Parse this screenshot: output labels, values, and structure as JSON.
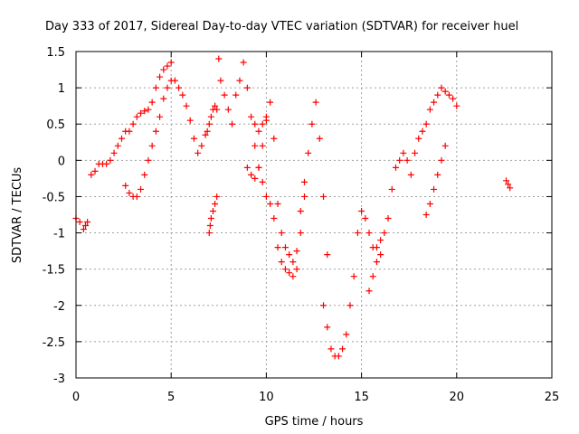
{
  "chart_data": {
    "type": "scatter",
    "title": "Day 333 of 2017, Sidereal Day-to-day VTEC variation (SDTVAR) for receiver huel",
    "xlabel": "GPS time / hours",
    "ylabel": "SDTVAR / TECUs",
    "xlim": [
      0,
      25
    ],
    "ylim": [
      -3,
      1.5
    ],
    "xticks": [
      0,
      5,
      10,
      15,
      20,
      25
    ],
    "yticks": [
      -3,
      -2.5,
      -2,
      -1.5,
      -1,
      -0.5,
      0,
      0.5,
      1,
      1.5
    ],
    "xtick_labels": [
      "0",
      "5",
      "10",
      "15",
      "20",
      "25"
    ],
    "ytick_labels": [
      "-3",
      "-2.5",
      "-2",
      "-1.5",
      "-1",
      "-0.5",
      "0",
      "0.5",
      "1",
      "1.5"
    ],
    "grid": true,
    "marker": "plus",
    "color": "#ff0000",
    "series": [
      {
        "name": "s1",
        "x": [
          0.0,
          0.2,
          0.4,
          0.5,
          0.6
        ],
        "y": [
          -0.8,
          -0.85,
          -0.95,
          -0.9,
          -0.85
        ]
      },
      {
        "name": "s2",
        "x": [
          0.8,
          1.0,
          1.2,
          1.4,
          1.6,
          1.8,
          2.0,
          2.2,
          2.4,
          2.6,
          2.8,
          3.0,
          3.2,
          3.4,
          3.6,
          3.8,
          4.0,
          4.2,
          4.4,
          4.6,
          4.8,
          5.0
        ],
        "y": [
          -0.2,
          -0.15,
          -0.05,
          -0.05,
          -0.05,
          0.0,
          0.1,
          0.2,
          0.3,
          0.4,
          0.4,
          0.5,
          0.6,
          0.65,
          0.68,
          0.7,
          0.8,
          1.0,
          1.15,
          1.25,
          1.3,
          1.35
        ]
      },
      {
        "name": "s3",
        "x": [
          2.6,
          2.8,
          3.0,
          3.2,
          3.4,
          3.6,
          3.8,
          4.0,
          4.2,
          4.4,
          4.6,
          4.8,
          5.0,
          5.2,
          5.4,
          5.6,
          5.8,
          6.0,
          6.2,
          6.4,
          6.6,
          6.8
        ],
        "y": [
          -0.35,
          -0.45,
          -0.5,
          -0.5,
          -0.4,
          -0.2,
          0.0,
          0.2,
          0.4,
          0.6,
          0.85,
          1.0,
          1.1,
          1.1,
          1.0,
          0.9,
          0.75,
          0.55,
          0.3,
          0.1,
          0.2,
          0.35
        ]
      },
      {
        "name": "s4",
        "x": [
          7.0,
          7.05,
          7.1,
          7.2,
          7.3,
          7.4
        ],
        "y": [
          -1.0,
          -0.9,
          -0.8,
          -0.7,
          -0.6,
          -0.5
        ]
      },
      {
        "name": "s5",
        "x": [
          6.9,
          7.0,
          7.1,
          7.2,
          7.3,
          7.4
        ],
        "y": [
          0.4,
          0.5,
          0.6,
          0.7,
          0.75,
          0.7
        ]
      },
      {
        "name": "s6",
        "x": [
          7.5,
          7.6,
          7.8,
          8.0,
          8.2,
          8.4,
          8.6,
          8.8,
          9.0,
          9.2,
          9.4,
          9.6,
          9.8,
          10.0
        ],
        "y": [
          1.4,
          1.1,
          0.9,
          0.7,
          0.5,
          0.9,
          1.1,
          1.35,
          1.0,
          0.6,
          0.5,
          0.4,
          0.5,
          0.55
        ]
      },
      {
        "name": "s7",
        "x": [
          9.0,
          9.2,
          9.4,
          9.6,
          9.8,
          10.0,
          10.2,
          10.4,
          10.6,
          10.8,
          11.0,
          11.2,
          11.4,
          11.6,
          11.8,
          12.0
        ],
        "y": [
          -0.1,
          -0.2,
          -0.25,
          -0.1,
          0.2,
          0.6,
          0.8,
          0.3,
          -0.6,
          -1.0,
          -1.2,
          -1.3,
          -1.4,
          -1.25,
          -0.7,
          -0.3
        ]
      },
      {
        "name": "s8",
        "x": [
          9.4,
          9.6,
          9.8,
          10.0,
          10.2,
          10.4,
          10.6,
          10.8,
          11.0,
          11.2,
          11.4,
          11.6,
          11.8,
          12.0,
          12.2,
          12.4,
          12.6,
          12.8,
          13.0,
          13.2
        ],
        "y": [
          0.2,
          -0.1,
          -0.3,
          -0.5,
          -0.6,
          -0.8,
          -1.2,
          -1.4,
          -1.5,
          -1.55,
          -1.6,
          -1.5,
          -1.0,
          -0.5,
          0.1,
          0.5,
          0.8,
          0.3,
          -0.5,
          -1.3
        ]
      },
      {
        "name": "s9",
        "x": [
          13.0,
          13.2,
          13.4,
          13.6,
          13.8,
          14.0,
          14.2,
          14.4,
          14.6,
          14.8,
          15.0,
          15.2,
          15.4,
          15.6,
          15.8,
          16.0
        ],
        "y": [
          -2.0,
          -2.3,
          -2.6,
          -2.7,
          -2.7,
          -2.6,
          -2.4,
          -2.0,
          -1.6,
          -1.0,
          -0.7,
          -0.8,
          -1.0,
          -1.2,
          -1.4,
          -1.3
        ]
      },
      {
        "name": "s10",
        "x": [
          15.4,
          15.6,
          15.8,
          16.0,
          16.2,
          16.4,
          16.6,
          16.8,
          17.0,
          17.2,
          17.4,
          17.6,
          17.8,
          18.0,
          18.2,
          18.4,
          18.6,
          18.8,
          19.0,
          19.2,
          19.4,
          19.6,
          19.8,
          20.0
        ],
        "y": [
          -1.8,
          -1.6,
          -1.2,
          -1.1,
          -1.0,
          -0.8,
          -0.4,
          -0.1,
          0.0,
          0.1,
          0.0,
          -0.2,
          0.1,
          0.3,
          0.4,
          0.5,
          0.7,
          0.8,
          0.9,
          1.0,
          0.95,
          0.9,
          0.85,
          0.75
        ]
      },
      {
        "name": "s11",
        "x": [
          18.4,
          18.6,
          18.8,
          19.0,
          19.2,
          19.4
        ],
        "y": [
          -0.75,
          -0.6,
          -0.4,
          -0.2,
          0.0,
          0.2
        ]
      },
      {
        "name": "s12",
        "x": [
          22.6,
          22.7,
          22.8
        ],
        "y": [
          -0.28,
          -0.33,
          -0.38
        ]
      }
    ]
  }
}
